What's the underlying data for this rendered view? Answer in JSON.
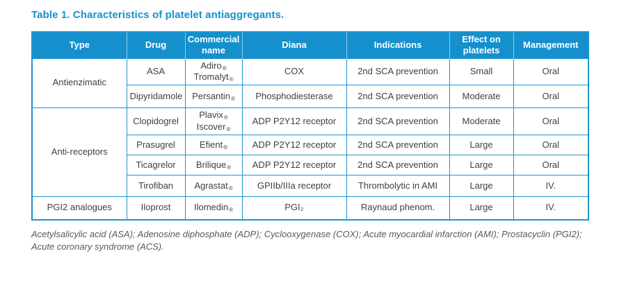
{
  "title": "Table 1. Characteristics of platelet antiaggregants.",
  "colors": {
    "accent_blue": "#1590cd",
    "border_blue": "#1e93cf",
    "cell_text": "#3f3f3f",
    "footnote_gray": "#595959"
  },
  "table": {
    "headers": [
      "Type",
      "Drug",
      "Commercial name",
      "Diana",
      "Indications",
      "Effect on platelets",
      "Management"
    ],
    "groups": [
      {
        "type": "Antienzimatic",
        "rows": [
          {
            "drug": "ASA",
            "commercial": "Adiro®\nTromalyt®",
            "diana": "COX",
            "indications": "2nd SCA prevention",
            "effect": "Small",
            "management": "Oral"
          },
          {
            "drug": "Dipyridamole",
            "commercial": "Persantin®",
            "diana": "Phosphodiesterase",
            "indications": "2nd SCA prevention",
            "effect": "Moderate",
            "management": "Oral"
          }
        ]
      },
      {
        "type": "Anti-receptors",
        "rows": [
          {
            "drug": "Clopidogrel",
            "commercial": "Plavix®\nIscover®",
            "diana": "ADP P2Y12 receptor",
            "indications": "2nd SCA prevention",
            "effect": "Moderate",
            "management": "Oral"
          },
          {
            "drug": "Prasugrel",
            "commercial": "Efient®",
            "diana": "ADP P2Y12 receptor",
            "indications": "2nd SCA prevention",
            "effect": "Large",
            "management": "Oral"
          },
          {
            "drug": "Ticagrelor",
            "commercial": "Brilique®",
            "diana": "ADP P2Y12 receptor",
            "indications": "2nd SCA prevention",
            "effect": "Large",
            "management": "Oral"
          },
          {
            "drug": "Tirofiban",
            "commercial": "Agrastat®",
            "diana": "GPIIb/IIIa receptor",
            "indications": "Thrombolytic in AMI",
            "effect": "Large",
            "management": "IV."
          }
        ]
      },
      {
        "type": "PGI2 analogues",
        "rows": [
          {
            "drug": "Iloprost",
            "commercial": "Ilomedin®",
            "diana": "PGI₂",
            "indications": "Raynaud phenom.",
            "effect": "Large",
            "management": "IV."
          }
        ]
      }
    ]
  },
  "footnote": "Acetylsalicylic acid (ASA); Adenosine diphosphate (ADP); Cyclooxygenase (COX); Acute myocardial infarction (AMI); Prostacyclin (PGI2);\nAcute coronary syndrome (ACS)."
}
